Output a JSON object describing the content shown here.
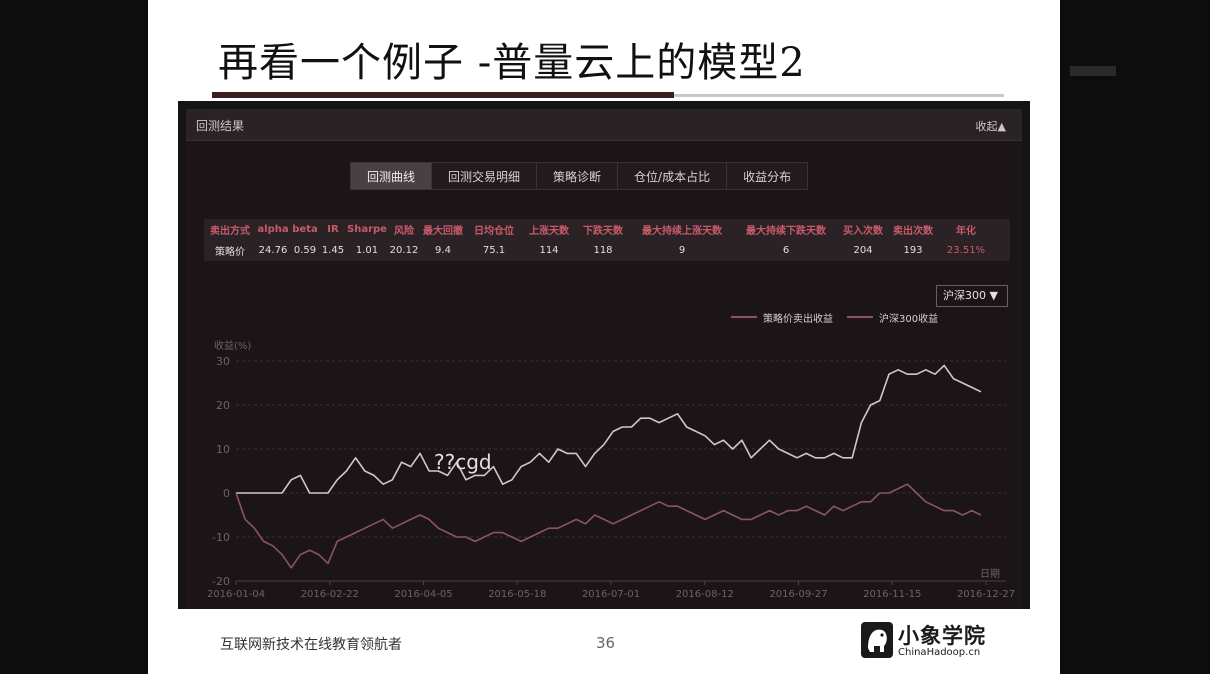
{
  "slide": {
    "title": "再看一个例子 -普量云上的模型2",
    "footer": "互联网新技术在线教育领航者",
    "page_number": "36",
    "logo_cn": "小象学院",
    "logo_en": "ChinaHadoop.cn"
  },
  "panel": {
    "title": "回测结果",
    "collapse_label": "收起▲"
  },
  "tabs": [
    "回测曲线",
    "回测交易明细",
    "策略诊断",
    "仓位/成本占比",
    "收益分布"
  ],
  "stats": {
    "headers": [
      "卖出方式",
      "alpha",
      "beta",
      "IR",
      "Sharpe",
      "风险",
      "最大回撤",
      "日均仓位",
      "上涨天数",
      "下跌天数",
      "最大持续上涨天数",
      "最大持续下跌天数",
      "买入次数",
      "卖出次数",
      "年化"
    ],
    "values": [
      "策略价",
      "24.76",
      "0.59",
      "1.45",
      "1.01",
      "20.12",
      "9.4",
      "75.1",
      "114",
      "118",
      "9",
      "6",
      "204",
      "193",
      "23.51%"
    ]
  },
  "benchmark_select": "沪深300 ▼",
  "legend": [
    "策略价卖出收益",
    "沪深300收益"
  ],
  "overlay_text": "??cgd",
  "colors": {
    "strategy": "#d8c3cb",
    "benchmark": "#8a5560",
    "grid": "#3a2f33",
    "accent": "#c85a6a"
  },
  "chart_data": {
    "type": "line",
    "ylabel": "收益(%)",
    "xlabel": "日期",
    "ylim": [
      -20,
      30
    ],
    "yticks": [
      30,
      20,
      10,
      0,
      -10,
      -20
    ],
    "xticks": [
      "2016-01-04",
      "2016-02-22",
      "2016-04-05",
      "2016-05-18",
      "2016-07-01",
      "2016-08-12",
      "2016-09-27",
      "2016-11-15",
      "2016-12-27"
    ],
    "grid": true,
    "legend_position": "top-right",
    "series": [
      {
        "name": "策略价卖出收益",
        "values": [
          0,
          0,
          0,
          0,
          0,
          0,
          3,
          4,
          0,
          0,
          0,
          3,
          5,
          8,
          5,
          4,
          2,
          3,
          7,
          6,
          9,
          5,
          5,
          4,
          7,
          3,
          4,
          4,
          6,
          2,
          3,
          6,
          7,
          9,
          7,
          10,
          9,
          9,
          6,
          9,
          11,
          14,
          15,
          15,
          17,
          17,
          16,
          17,
          18,
          15,
          14,
          13,
          11,
          12,
          10,
          12,
          8,
          10,
          12,
          10,
          9,
          8,
          9,
          8,
          8,
          9,
          8,
          8,
          16,
          20,
          21,
          27,
          28,
          27,
          27,
          28,
          27,
          29,
          26,
          25,
          24,
          23
        ]
      },
      {
        "name": "沪深300收益",
        "values": [
          0,
          -6,
          -8,
          -11,
          -12,
          -14,
          -17,
          -14,
          -13,
          -14,
          -16,
          -11,
          -10,
          -9,
          -8,
          -7,
          -6,
          -8,
          -7,
          -6,
          -5,
          -6,
          -8,
          -9,
          -10,
          -10,
          -11,
          -10,
          -9,
          -9,
          -10,
          -11,
          -10,
          -9,
          -8,
          -8,
          -7,
          -6,
          -7,
          -5,
          -6,
          -7,
          -6,
          -5,
          -4,
          -3,
          -2,
          -3,
          -3,
          -4,
          -5,
          -6,
          -5,
          -4,
          -5,
          -6,
          -6,
          -5,
          -4,
          -5,
          -4,
          -4,
          -3,
          -4,
          -5,
          -3,
          -4,
          -3,
          -2,
          -2,
          0,
          0,
          1,
          2,
          0,
          -2,
          -3,
          -4,
          -4,
          -5,
          -4,
          -5
        ]
      }
    ]
  }
}
